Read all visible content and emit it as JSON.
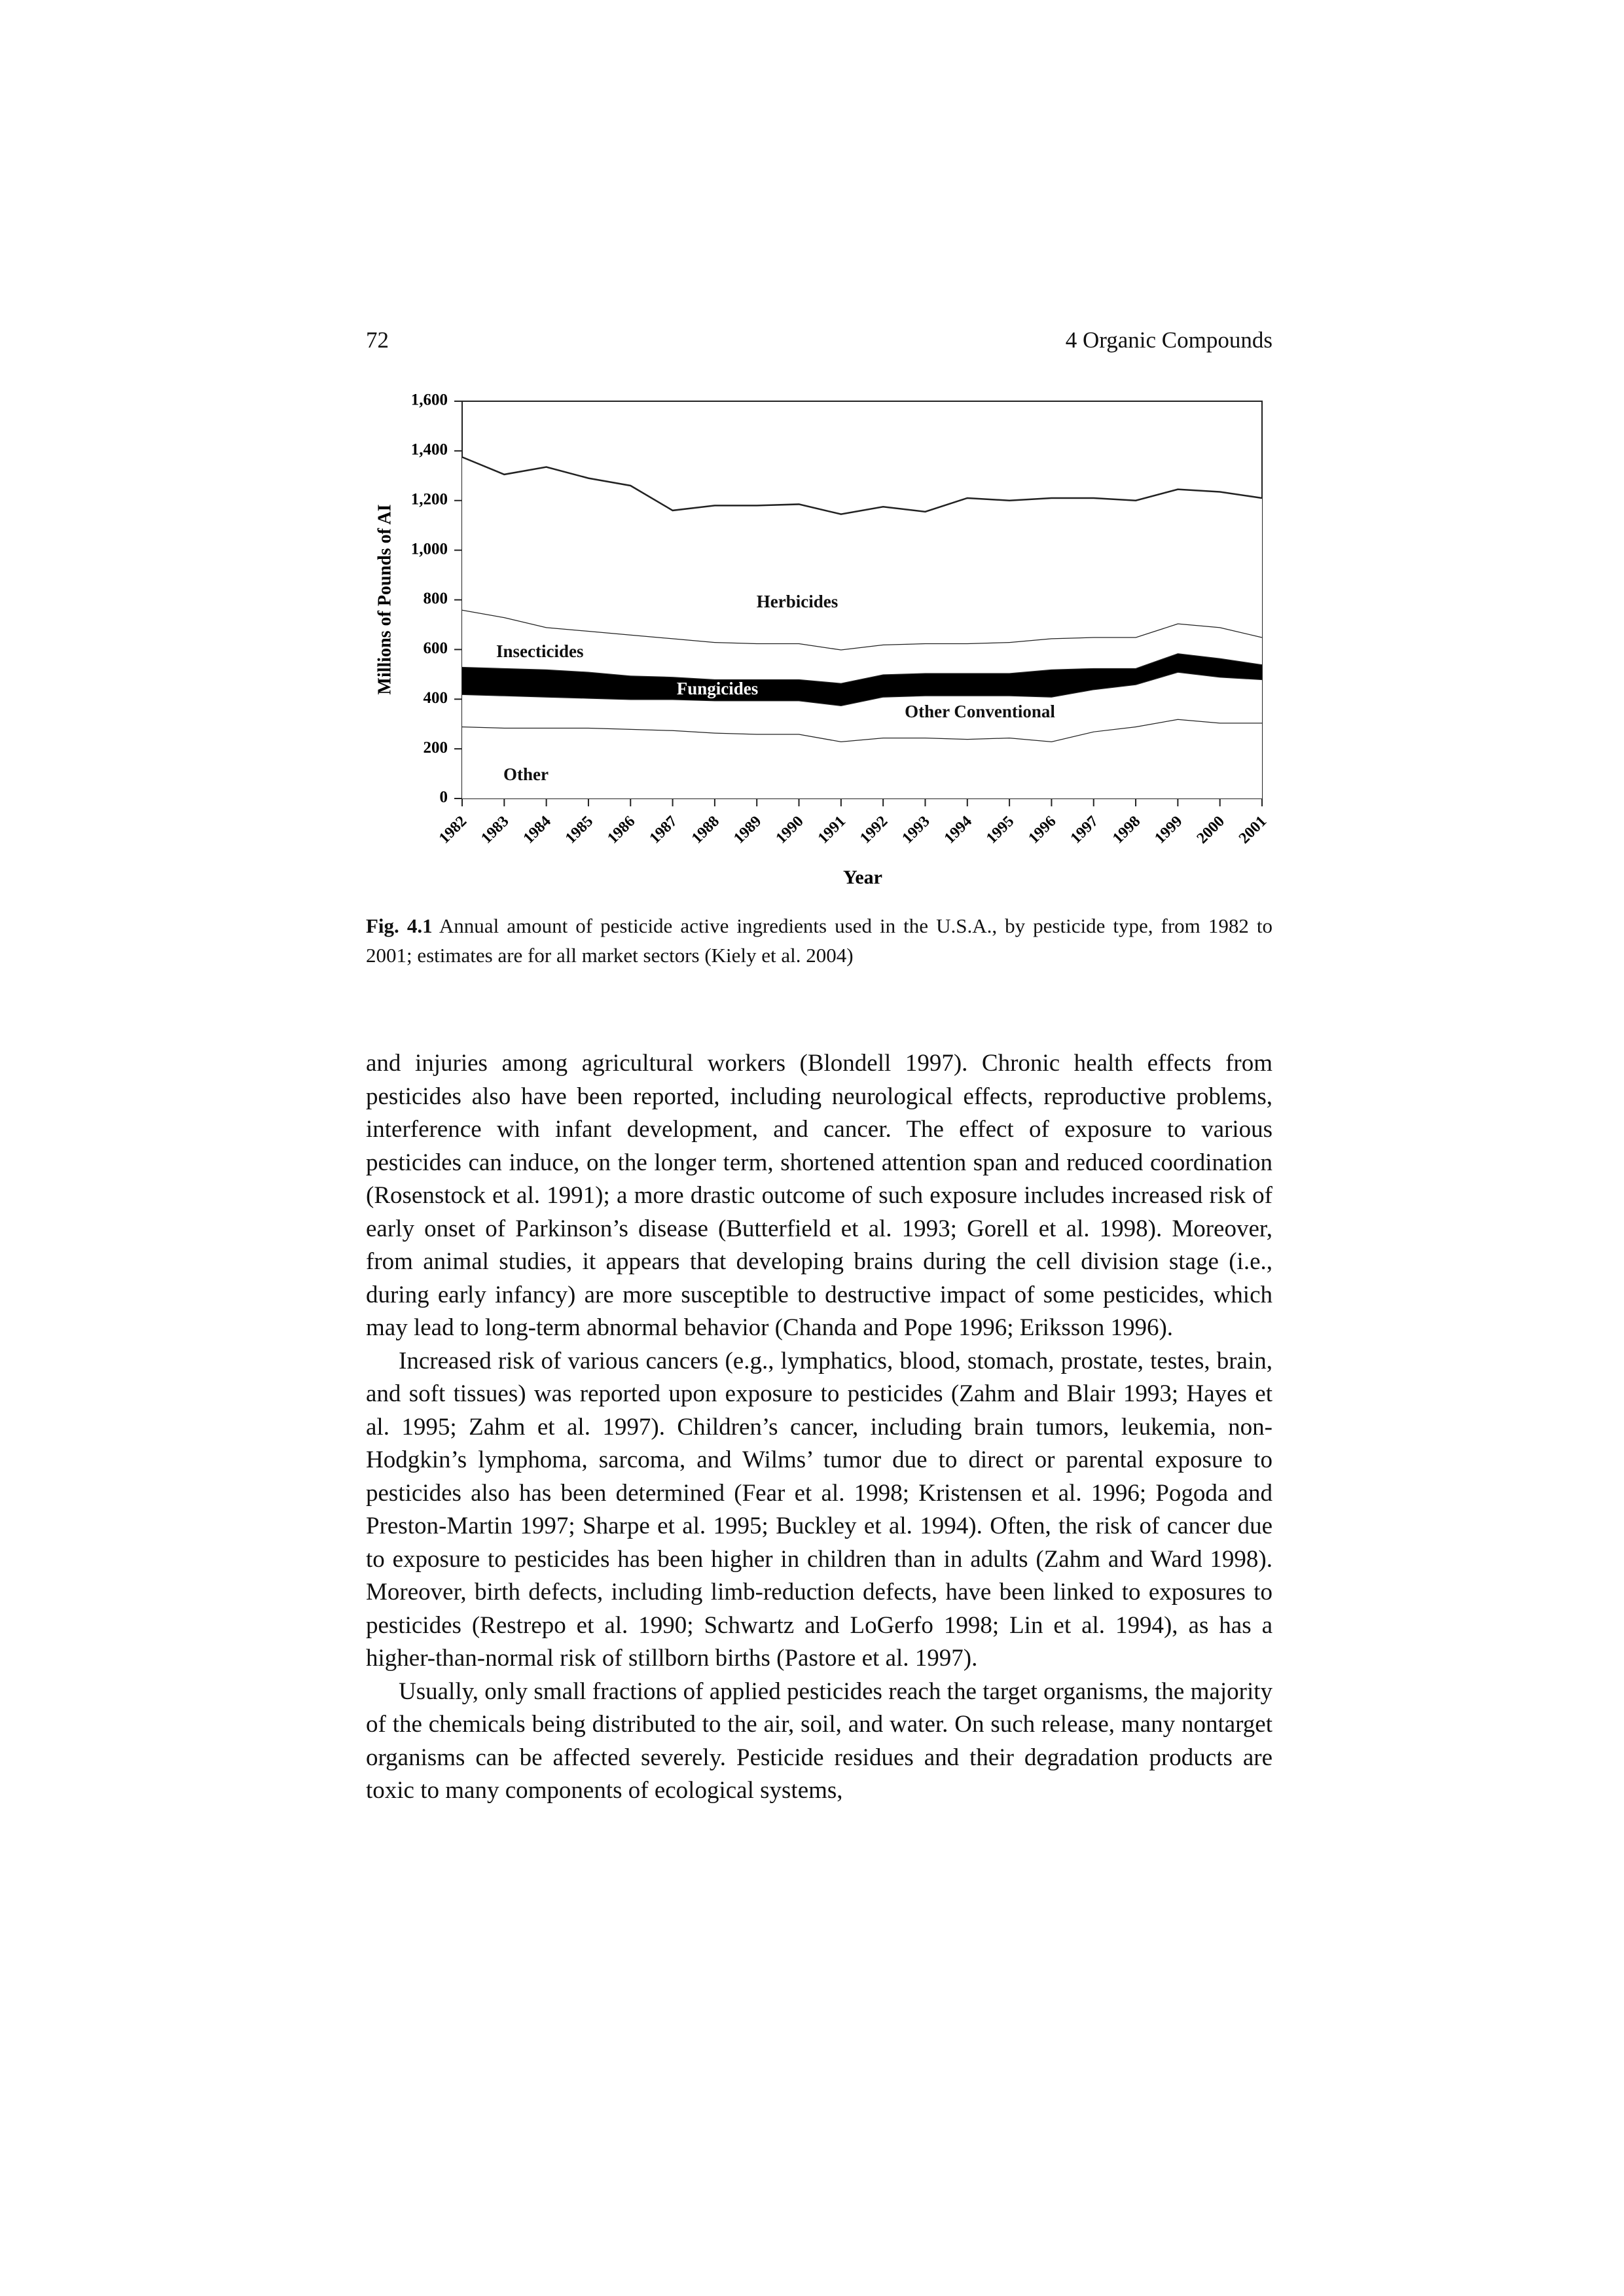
{
  "header": {
    "page_number": "72",
    "running_title": "4 Organic Compounds"
  },
  "chart_data": {
    "type": "stacked-area",
    "xlabel": "Year",
    "ylabel": "Millions of Pounds of AI",
    "categories": [
      "1982",
      "1983",
      "1984",
      "1985",
      "1986",
      "1987",
      "1988",
      "1989",
      "1990",
      "1991",
      "1992",
      "1993",
      "1994",
      "1995",
      "1996",
      "1997",
      "1998",
      "1999",
      "2000",
      "2001"
    ],
    "series": [
      {
        "name": "Other",
        "color": "#ffffff",
        "values": [
          290,
          285,
          285,
          285,
          280,
          275,
          265,
          260,
          260,
          230,
          245,
          245,
          240,
          245,
          230,
          270,
          290,
          320,
          305,
          305
        ]
      },
      {
        "name": "Other Conventional",
        "color": "#ffffff",
        "values": [
          130,
          130,
          125,
          120,
          120,
          125,
          130,
          135,
          135,
          145,
          165,
          170,
          175,
          170,
          180,
          170,
          170,
          190,
          185,
          175
        ]
      },
      {
        "name": "Fungicides",
        "color": "#000000",
        "values": [
          110,
          110,
          110,
          105,
          95,
          90,
          85,
          85,
          85,
          90,
          90,
          90,
          90,
          90,
          110,
          85,
          65,
          75,
          75,
          60
        ]
      },
      {
        "name": "Insecticides",
        "color": "#ffffff",
        "values": [
          230,
          205,
          170,
          165,
          165,
          155,
          150,
          145,
          145,
          135,
          120,
          120,
          120,
          125,
          125,
          125,
          125,
          120,
          125,
          110
        ]
      },
      {
        "name": "Herbicides",
        "color": "#ffffff",
        "values": [
          615,
          575,
          645,
          615,
          600,
          515,
          550,
          555,
          560,
          545,
          555,
          530,
          585,
          570,
          565,
          560,
          550,
          540,
          545,
          560
        ]
      }
    ],
    "ylim": [
      0,
      1600
    ],
    "yticks": [
      0,
      200,
      400,
      600,
      800,
      {
        "value": 1000,
        "label": "1,000"
      },
      {
        "value": 1200,
        "label": "1,200"
      },
      {
        "value": 1400,
        "label": "1,400"
      },
      {
        "value": 1600,
        "label": "1,600"
      }
    ],
    "grid": false
  },
  "caption": {
    "label": "Fig. 4.1",
    "text": "Annual amount of pesticide active ingredients used in the U.S.A., by pesticide type, from 1982 to 2001; estimates are for all market sectors (Kiely et al. 2004)"
  },
  "paragraphs": [
    "and injuries among agricultural workers (Blondell 1997). Chronic health effects from pesticides also have been reported, including neurological effects, reproductive problems, interference with infant development, and cancer. The effect of exposure to various pesticides can induce, on the longer term, shortened attention span and reduced coordination (Rosenstock et al. 1991); a more drastic outcome of such exposure includes increased risk of early onset of Parkinson’s disease (Butterfield et al. 1993; Gorell et al. 1998). Moreover, from animal studies, it appears that developing brains during the cell division stage (i.e., during early infancy) are more susceptible to destructive impact of some pesticides, which may lead to long-term abnormal behavior (Chanda and Pope 1996; Eriksson 1996).",
    "Increased risk of various cancers (e.g., lymphatics, blood, stomach, prostate, testes, brain, and soft tissues) was reported upon exposure to pesticides (Zahm and Blair 1993; Hayes et al. 1995; Zahm et al. 1997). Children’s cancer, including brain tumors, leukemia, non-Hodgkin’s lymphoma, sarcoma, and Wilms’ tumor due to direct or parental exposure to pesticides also has been determined (Fear et al. 1998; Kristensen et al. 1996; Pogoda and Preston-Martin 1997; Sharpe et al. 1995; Buckley et al. 1994). Often, the risk of cancer due to exposure to pesticides has been higher in children than in adults (Zahm and Ward 1998). Moreover, birth defects, including limb-reduction defects, have been linked to exposures to pesticides (Restrepo et al. 1990; Schwartz and LoGerfo 1998; Lin et al. 1994), as has a higher-than-normal risk of stillborn births (Pastore et al. 1997).",
    "Usually, only small fractions of applied pesticides reach the target organisms, the majority of the chemicals being distributed to the air, soil, and water. On such release, many nontarget organisms can be affected severely. Pesticide residues and their degradation products are toxic to many components of ecological systems,"
  ]
}
